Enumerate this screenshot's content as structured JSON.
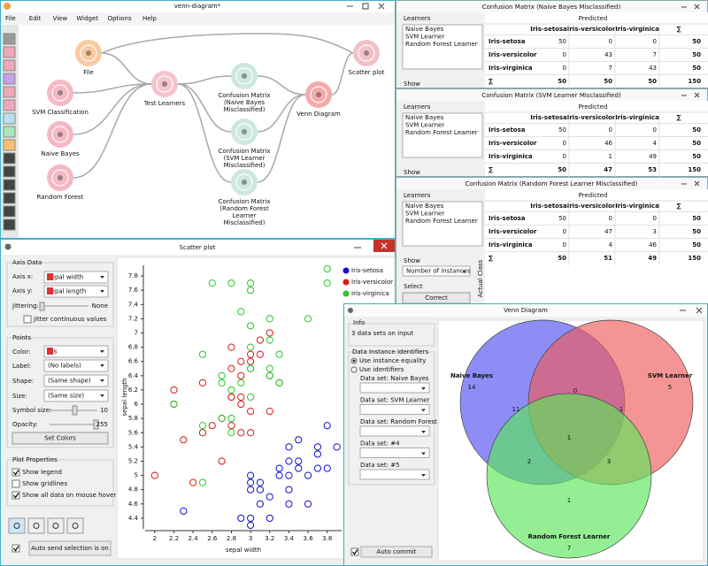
{
  "canvas": {
    "title": "venn-diagram*",
    "menu": [
      "File",
      "Edit",
      "View",
      "Widget",
      "Options",
      "Help"
    ],
    "widgets": [
      {
        "lines": [
          "File"
        ]
      },
      {
        "lines": [
          "SVM Classification"
        ]
      },
      {
        "lines": [
          "Naive Bayes"
        ]
      },
      {
        "lines": [
          "Random Forest"
        ]
      },
      {
        "lines": [
          "Test Learners"
        ]
      },
      {
        "lines": [
          "Confusion Matrix",
          "(Naive Bayes",
          "Misclassified)"
        ]
      },
      {
        "lines": [
          "Confusion Matrix",
          "(SVM Learner",
          "Misclassified)"
        ]
      },
      {
        "lines": [
          "Confusion Matrix",
          "(Random Forest",
          "Learner",
          "Misclassified)"
        ]
      },
      {
        "lines": [
          "Venn Diagram"
        ]
      },
      {
        "lines": [
          "Scatter plot"
        ]
      }
    ]
  },
  "confusion_matrices": {
    "learners_label": "Learners",
    "learners": [
      "Naive Bayes",
      "SVM Learner",
      "Random Forest Learner"
    ],
    "show": "Show",
    "predicted": "Predicted",
    "columns": [
      "Iris-setosa",
      "Iris-versicolor",
      "Iris-virginica",
      "∑"
    ],
    "row_labels": [
      "Iris-setosa",
      "Iris-versicolor",
      "Iris-virginica",
      "∑"
    ],
    "show_value": "Number of instances",
    "select": "Select",
    "correct": "Correct",
    "actual_class": "Actual Class",
    "windows": [
      {
        "title": "Confusion Matrix (Naive Bayes Misclassified)",
        "rows": [
          [
            50,
            0,
            0,
            50
          ],
          [
            0,
            43,
            7,
            50
          ],
          [
            0,
            7,
            43,
            50
          ],
          [
            50,
            50,
            50,
            150
          ]
        ]
      },
      {
        "title": "Confusion Matrix (SVM Learner Misclassified)",
        "rows": [
          [
            50,
            0,
            0,
            50
          ],
          [
            0,
            46,
            4,
            50
          ],
          [
            0,
            1,
            49,
            50
          ],
          [
            50,
            47,
            53,
            150
          ]
        ]
      },
      {
        "title": "Confusion Matrix (Random Forest Learner Misclassified)",
        "rows": [
          [
            50,
            0,
            0,
            50
          ],
          [
            0,
            47,
            3,
            50
          ],
          [
            0,
            4,
            46,
            50
          ],
          [
            50,
            51,
            49,
            150
          ]
        ]
      }
    ]
  },
  "scatter_plot": {
    "title": "Scatter plot",
    "axis_data": "Axis Data",
    "axis_x_label": "Axis x:",
    "axis_x": "sepal width",
    "axis_y_label": "Axis y:",
    "axis_y": "sepal length",
    "jittering": "Jittering:",
    "jitter_value": "None",
    "jitter_continuous": "Jitter continuous values",
    "points": "Points",
    "color_label": "Color:",
    "color": "iris",
    "label_label": "Label:",
    "label": "(No labels)",
    "shape_label": "Shape:",
    "shape": "(Same shape)",
    "size_label": "Size:",
    "size": "(Same size)",
    "symbol_size_label": "Symbol size:",
    "symbol_size": 10,
    "opacity_label": "Opacity:",
    "opacity": 255,
    "set_colors": "Set Colors",
    "plot_properties": "Plot Properties",
    "show_legend": "Show legend",
    "show_gridlines": "Show gridlines",
    "show_all": "Show all data on mouse hover",
    "auto_send": "Auto send selection is on",
    "plot": {
      "type": "scatter",
      "x_label": "sepal width",
      "y_label": "sepal length",
      "xlim": [
        1.9,
        3.95
      ],
      "ylim": [
        4.25,
        7.95
      ],
      "xticks": [
        2,
        2.2,
        2.4,
        2.6,
        2.8,
        3,
        3.2,
        3.4,
        3.6,
        3.8
      ],
      "yticks": [
        4.4,
        4.6,
        4.8,
        5,
        5.2,
        5.4,
        5.6,
        5.8,
        6,
        6.2,
        6.4,
        6.6,
        6.8,
        7,
        7.2,
        7.4,
        7.6,
        7.8
      ],
      "series": [
        {
          "name": "Iris-setosa",
          "color": "#1010d0",
          "x": [
            3.5,
            3.0,
            3.2,
            3.1,
            3.6,
            3.9,
            3.4,
            3.4,
            2.9,
            3.1,
            3.7,
            3.4,
            3.0,
            3.0,
            3.8,
            3.8,
            3.4,
            3.7,
            3.6,
            3.3,
            3.0,
            3.5,
            3.4,
            3.1,
            3.5,
            3.2,
            2.3,
            3.7,
            3.3,
            3.0
          ],
          "y": [
            5.1,
            4.9,
            4.7,
            4.6,
            5.0,
            5.4,
            4.6,
            5.0,
            4.4,
            4.9,
            5.4,
            4.8,
            4.8,
            4.3,
            5.7,
            5.1,
            5.4,
            5.1,
            4.6,
            5.1,
            5.0,
            5.2,
            5.2,
            4.8,
            5.5,
            4.4,
            4.5,
            5.3,
            5.0,
            4.4
          ]
        },
        {
          "name": "Iris-versicolor",
          "color": "#d81818",
          "x": [
            3.2,
            3.2,
            3.1,
            2.3,
            2.8,
            2.8,
            3.3,
            2.4,
            2.9,
            2.7,
            2.0,
            3.0,
            2.2,
            2.9,
            2.9,
            3.1,
            3.0,
            2.7,
            2.2,
            2.5,
            3.2,
            2.8,
            2.5,
            2.8,
            2.9,
            3.0,
            2.8,
            3.0,
            2.9,
            2.6
          ],
          "y": [
            7.0,
            6.4,
            6.9,
            5.5,
            6.5,
            5.7,
            6.3,
            4.9,
            6.6,
            5.2,
            5.0,
            5.9,
            6.0,
            6.1,
            5.6,
            6.7,
            5.6,
            5.8,
            6.2,
            5.6,
            5.9,
            6.1,
            6.3,
            6.1,
            6.4,
            6.6,
            6.8,
            6.7,
            6.0,
            5.7
          ]
        },
        {
          "name": "Iris-virginica",
          "color": "#28c828",
          "x": [
            3.3,
            2.7,
            3.0,
            2.9,
            3.0,
            3.0,
            2.5,
            2.9,
            2.5,
            3.6,
            3.2,
            2.7,
            3.0,
            2.5,
            2.8,
            3.2,
            3.0,
            3.8,
            2.6,
            2.2,
            3.2,
            2.8,
            2.8,
            2.7,
            3.3,
            3.2,
            2.8,
            3.0,
            3.8,
            3.0
          ],
          "y": [
            6.3,
            5.8,
            7.1,
            6.3,
            6.5,
            7.6,
            4.9,
            7.3,
            6.7,
            7.2,
            6.5,
            6.4,
            6.8,
            5.7,
            5.8,
            6.4,
            6.5,
            7.7,
            7.7,
            6.0,
            6.9,
            5.6,
            7.7,
            6.3,
            6.7,
            7.2,
            6.2,
            6.1,
            7.9,
            7.7
          ]
        }
      ]
    }
  },
  "venn": {
    "title": "Venn Diagram",
    "info": "Info",
    "info_text": "3 data sets on input",
    "identifiers": "Data Instance Identifiers",
    "use_equality": "Use instance equality",
    "use_identifiers": "Use identifiers",
    "data_sets": [
      "Data set: Naive Bayes",
      "Data set: SVM Learner",
      "Data set: Random Forest Learner",
      "Data set: #4",
      "Data set: #5"
    ],
    "auto_commit": "Auto commit",
    "sets": [
      {
        "name": "Naive Bayes",
        "count": 14,
        "color": "#5050f0"
      },
      {
        "name": "SVM Learner",
        "count": 5,
        "color": "#f05a5a"
      },
      {
        "name": "Random Forest Learner",
        "count": 7,
        "color": "#5ae65a"
      }
    ],
    "regions": [
      11,
      0,
      1,
      1,
      2,
      3,
      1
    ]
  }
}
